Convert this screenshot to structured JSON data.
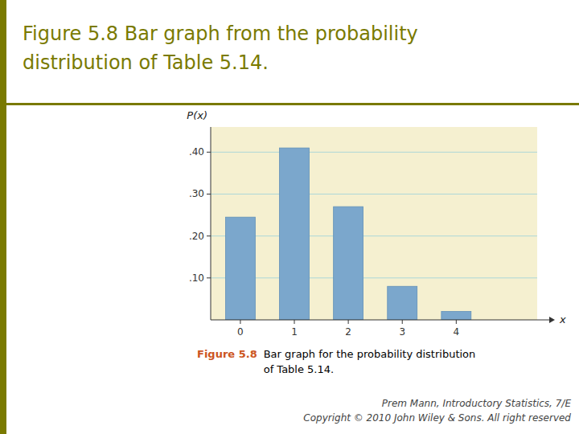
{
  "chart_data": {
    "type": "bar",
    "title": "Figure 5.8 Bar graph from the probability\ndistribution of Table 5.14.",
    "x": [
      0,
      1,
      2,
      3,
      4
    ],
    "values": [
      0.245,
      0.41,
      0.27,
      0.08,
      0.02
    ],
    "color": "#7ba7cc",
    "x_label": "x",
    "y_label": "P(x)",
    "xlim": [
      -0.55,
      5.5
    ],
    "xticks": [
      0,
      1,
      2,
      3,
      4
    ],
    "ylim": [
      0,
      0.46
    ],
    "yticks": [
      {
        "value": 0.1,
        "label": ".10"
      },
      {
        "value": 0.2,
        "label": ".20"
      },
      {
        "value": 0.3,
        "label": ".30"
      },
      {
        "value": 0.4,
        "label": ".40"
      }
    ],
    "grid": true,
    "annotations": [
      "Figure 5.8",
      "Bar graph for the probability distribution\nof Table 5.14.",
      "Prem Mann, Introductory Statistics, 7/E\nCopyright © 2010 John Wiley & Sons. All right reserved"
    ]
  }
}
